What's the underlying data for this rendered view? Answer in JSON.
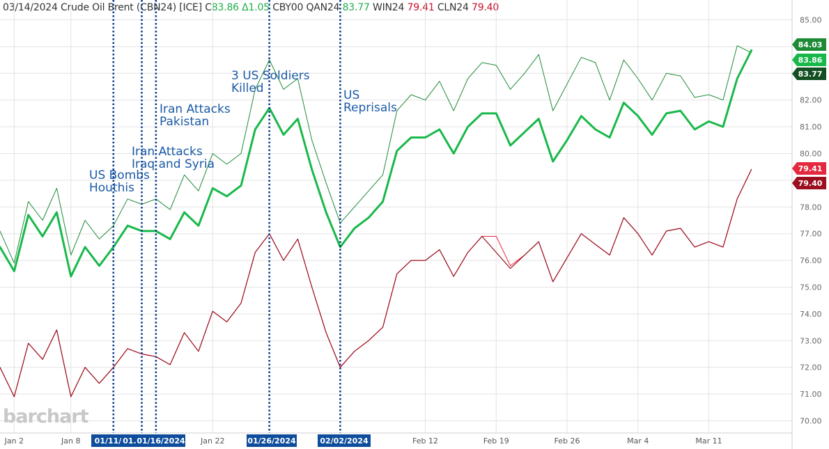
{
  "header": {
    "date": "03/14/2024",
    "name": "Crude Oil Brent (CBN24) [ICE]",
    "close_label": "C",
    "close_value": "83.86",
    "change": "Δ1.05",
    "cby": "CBY00",
    "qan_label": "QAN24",
    "qan_value": "83.77",
    "win_label": "WIN24",
    "win_value": "79.41",
    "cln_label": "CLN24",
    "cln_value": "79.40"
  },
  "watermark": "barchart",
  "colors": {
    "brent": "#18b84a",
    "qan": "#1e8a36",
    "win": "#e4283d",
    "cln": "#9b0f1f",
    "event_line": "#0d3f8f",
    "annotation": "#1a5aa6",
    "grid": "#e3e3e3"
  },
  "chart_data": {
    "type": "line",
    "x": [
      "12/29",
      "01/02",
      "01/03",
      "01/04",
      "01/05",
      "01/08",
      "01/09",
      "01/10",
      "01/11",
      "01/12",
      "01/15",
      "01/16",
      "01/17",
      "01/18",
      "01/19",
      "01/22",
      "01/23",
      "01/24",
      "01/25",
      "01/26",
      "01/29",
      "01/30",
      "01/31",
      "02/01",
      "02/02",
      "02/05",
      "02/06",
      "02/07",
      "02/08",
      "02/09",
      "02/12",
      "02/13",
      "02/14",
      "02/15",
      "02/16",
      "02/19",
      "02/20",
      "02/21",
      "02/22",
      "02/23",
      "02/26",
      "02/27",
      "02/28",
      "02/29",
      "03/01",
      "03/04",
      "03/05",
      "03/06",
      "03/07",
      "03/08",
      "03/11",
      "03/12",
      "03/13",
      "03/14"
    ],
    "xticks": [
      "Jan 2",
      "Jan 8",
      "Jan 22",
      "Feb 12",
      "Feb 19",
      "Feb 26",
      "Mar 4",
      "Mar 11"
    ],
    "ylim": [
      69.6,
      85.6
    ],
    "yticks": [
      "70.00",
      "71.00",
      "72.00",
      "73.00",
      "74.00",
      "75.00",
      "76.00",
      "77.00",
      "78.00",
      "79.00",
      "80.00",
      "81.00",
      "82.00",
      "83.00",
      "84.00",
      "85.00"
    ],
    "grid": true,
    "series": [
      {
        "name": "CBN24",
        "values": [
          76.5,
          75.6,
          77.7,
          76.9,
          77.8,
          75.4,
          76.5,
          75.8,
          76.5,
          77.3,
          77.1,
          77.1,
          76.8,
          77.8,
          77.3,
          78.7,
          78.4,
          78.8,
          80.9,
          81.7,
          80.7,
          81.3,
          79.4,
          77.8,
          76.5,
          77.2,
          77.6,
          78.2,
          80.1,
          80.6,
          80.6,
          80.9,
          80.0,
          81.0,
          81.5,
          81.5,
          80.3,
          80.8,
          81.3,
          79.7,
          80.5,
          81.4,
          80.9,
          80.6,
          81.9,
          81.4,
          80.7,
          81.5,
          81.6,
          80.9,
          81.2,
          81.0,
          82.8,
          83.86
        ]
      },
      {
        "name": "QAN24",
        "values": [
          77.1,
          75.9,
          78.2,
          77.5,
          78.7,
          76.2,
          77.5,
          76.8,
          77.3,
          78.3,
          78.1,
          78.3,
          77.9,
          79.2,
          78.6,
          80.0,
          79.6,
          80.0,
          82.4,
          83.5,
          82.4,
          82.8,
          80.5,
          78.9,
          77.4,
          78.0,
          78.6,
          79.2,
          81.6,
          82.2,
          82.0,
          82.7,
          81.6,
          82.8,
          83.4,
          83.3,
          82.4,
          83.0,
          83.7,
          81.6,
          82.6,
          83.6,
          83.4,
          82.0,
          83.5,
          82.8,
          82.0,
          83.0,
          82.9,
          82.1,
          82.2,
          82.0,
          84.03,
          83.77
        ]
      },
      {
        "name": "WIN24",
        "values": [
          72.0,
          70.9,
          72.9,
          72.3,
          73.4,
          70.9,
          72.0,
          71.4,
          72.0,
          72.7,
          72.5,
          72.4,
          72.1,
          73.3,
          72.6,
          74.1,
          73.7,
          74.4,
          76.3,
          77.0,
          76.0,
          76.8,
          75.0,
          73.3,
          72.0,
          72.6,
          73.0,
          73.5,
          75.5,
          76.0,
          76.0,
          76.4,
          75.4,
          76.3,
          76.9,
          76.9,
          75.8,
          76.2,
          76.7,
          75.2,
          76.1,
          77.0,
          76.6,
          76.2,
          77.6,
          77.0,
          76.2,
          77.1,
          77.2,
          76.5,
          76.7,
          76.5,
          78.3,
          79.41
        ]
      },
      {
        "name": "CLN24",
        "values": [
          72.0,
          70.9,
          72.9,
          72.3,
          73.4,
          70.9,
          72.0,
          71.4,
          72.0,
          72.7,
          72.5,
          72.4,
          72.1,
          73.3,
          72.6,
          74.1,
          73.7,
          74.4,
          76.3,
          77.0,
          76.0,
          76.8,
          75.0,
          73.3,
          72.0,
          72.6,
          73.0,
          73.5,
          75.5,
          76.0,
          76.0,
          76.4,
          75.4,
          76.3,
          76.9,
          76.3,
          75.7,
          76.2,
          76.7,
          75.2,
          76.1,
          77.0,
          76.6,
          76.2,
          77.6,
          77.0,
          76.2,
          77.1,
          77.2,
          76.5,
          76.7,
          76.5,
          78.3,
          79.4
        ]
      }
    ],
    "last_value_labels": [
      {
        "text": "84.03",
        "value": 84.03,
        "color": "#1e8a36"
      },
      {
        "text": "83.86",
        "value": 83.86,
        "color": "#18b84a"
      },
      {
        "text": "83.77",
        "value": 83.77,
        "color": "#134f22"
      },
      {
        "text": "79.41",
        "value": 79.41,
        "color": "#e4283d"
      },
      {
        "text": "79.40",
        "value": 79.4,
        "color": "#9b0f1f"
      }
    ],
    "events": [
      {
        "date": "01/11",
        "tag": "01/11/",
        "lines": [
          "US Bombs",
          "Houthis"
        ]
      },
      {
        "date": "01/15",
        "tag": "01.",
        "lines": [
          "Iran Attacks",
          "Iraq and Syria"
        ]
      },
      {
        "date": "01/16",
        "tag": "01/16/2024",
        "lines": [
          "Iran Attacks",
          "Pakistan"
        ]
      },
      {
        "date": "01/26",
        "tag": "01/26/2024",
        "lines": [
          "3 US Soldiers",
          "Killed"
        ]
      },
      {
        "date": "02/02",
        "tag": "02/02/2024",
        "lines": [
          "US",
          "Reprisals"
        ]
      }
    ]
  }
}
